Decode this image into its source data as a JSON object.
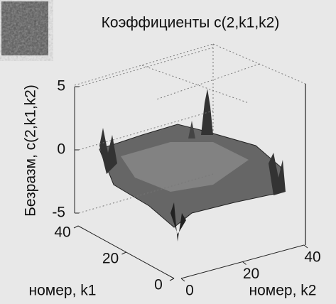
{
  "chart_data": {
    "type": "surface",
    "title": "Коэффициенты c(2,k1,k2)",
    "zlabel": "Безразм, c(2,k1,k2)",
    "xlabel": "номер, k1",
    "ylabel": "номер, k2",
    "zlim": [
      -5,
      5
    ],
    "zticks": [
      -5,
      0,
      5
    ],
    "xlim": [
      0,
      40
    ],
    "xticks": [
      0,
      20,
      40
    ],
    "ylim": [
      0,
      40
    ],
    "yticks": [
      0,
      20,
      40
    ],
    "grid": true
  }
}
